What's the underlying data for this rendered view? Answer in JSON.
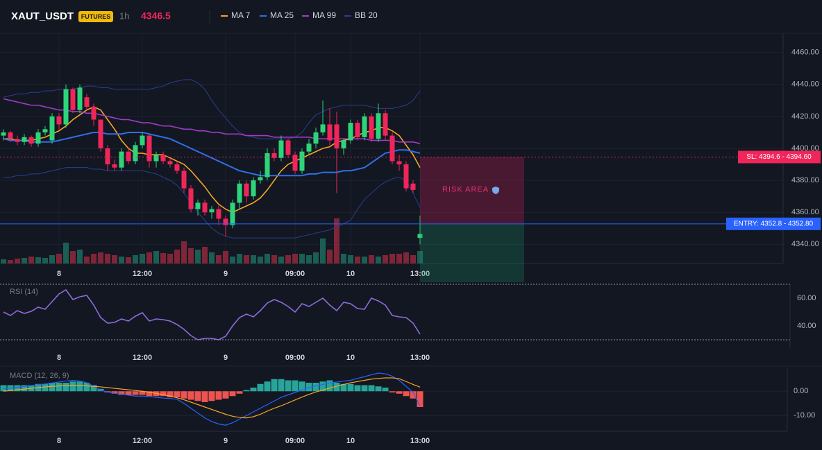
{
  "header": {
    "symbol": "XAUT_USDT",
    "badge": "FUTURES",
    "interval": "1h",
    "price": "4346.5"
  },
  "chart_data": [
    {
      "type": "candlestick",
      "categories": [
        null,
        null,
        null,
        null,
        null,
        null,
        null,
        null,
        "8",
        null,
        null,
        null,
        null,
        null,
        null,
        null,
        null,
        null,
        null,
        null,
        "12:00",
        null,
        null,
        null,
        null,
        null,
        null,
        null,
        null,
        null,
        null,
        null,
        "9",
        null,
        null,
        null,
        null,
        null,
        null,
        null,
        null,
        null,
        "09:00",
        null,
        null,
        null,
        null,
        null,
        null,
        null,
        "10",
        null,
        null,
        null,
        null,
        null,
        null,
        null,
        null,
        null,
        "13:00"
      ],
      "open": [
        4408,
        4410,
        4406,
        4404,
        4407,
        4403,
        4410,
        4405,
        4420,
        4415,
        4437,
        4424,
        4432,
        4426,
        4418,
        4400,
        4390,
        4388,
        4398,
        4392,
        4402,
        4408,
        4392,
        4396,
        4392,
        4390,
        4386,
        4375,
        4362,
        4366,
        4360,
        4362,
        4356,
        4352,
        4366,
        4378,
        4370,
        4380,
        4382,
        4397,
        4394,
        4405,
        4396,
        4386,
        4398,
        4403,
        4410,
        4415,
        4415,
        4400,
        4405,
        4416,
        4407,
        4420,
        4406,
        4422,
        4408,
        4392,
        4390,
        4378,
        4344
      ],
      "high": [
        4412,
        4411,
        4408,
        4409,
        4408,
        4412,
        4414,
        4422,
        4422,
        4440,
        4438,
        4440,
        4434,
        4428,
        4418,
        4402,
        4393,
        4400,
        4400,
        4404,
        4410,
        4409,
        4398,
        4398,
        4394,
        4392,
        4388,
        4377,
        4368,
        4368,
        4364,
        4364,
        4358,
        4368,
        4380,
        4380,
        4382,
        4386,
        4400,
        4400,
        4408,
        4406,
        4398,
        4400,
        4406,
        4413,
        4430,
        4425,
        4423,
        4406,
        4418,
        4418,
        4422,
        4422,
        4428,
        4424,
        4410,
        4396,
        4392,
        4380,
        4358
      ],
      "low": [
        4405,
        4404,
        4402,
        4402,
        4401,
        4401,
        4408,
        4403,
        4412,
        4413,
        4422,
        4422,
        4424,
        4414,
        4398,
        4386,
        4386,
        4386,
        4390,
        4390,
        4400,
        4388,
        4388,
        4390,
        4388,
        4384,
        4372,
        4360,
        4358,
        4358,
        4356,
        4352,
        4345,
        4350,
        4362,
        4366,
        4368,
        4378,
        4380,
        4392,
        4392,
        4394,
        4384,
        4384,
        4396,
        4400,
        4408,
        4402,
        4372,
        4396,
        4403,
        4405,
        4405,
        4404,
        4404,
        4405,
        4390,
        4386,
        4373,
        4372,
        4340
      ],
      "close": [
        4410,
        4406,
        4404,
        4407,
        4403,
        4410,
        4412,
        4420,
        4415,
        4437,
        4424,
        4438,
        4426,
        4418,
        4400,
        4390,
        4388,
        4398,
        4392,
        4402,
        4408,
        4392,
        4396,
        4392,
        4390,
        4386,
        4375,
        4362,
        4366,
        4360,
        4362,
        4356,
        4352,
        4366,
        4378,
        4370,
        4380,
        4382,
        4397,
        4394,
        4405,
        4396,
        4386,
        4398,
        4403,
        4410,
        4415,
        4405,
        4400,
        4405,
        4416,
        4407,
        4420,
        4406,
        4422,
        4408,
        4392,
        4390,
        4375,
        4374,
        4346.5
      ],
      "volume": [
        6,
        5,
        7,
        8,
        10,
        9,
        8,
        12,
        14,
        30,
        18,
        20,
        10,
        14,
        16,
        14,
        12,
        10,
        9,
        12,
        14,
        16,
        18,
        15,
        14,
        20,
        32,
        22,
        20,
        24,
        16,
        12,
        18,
        10,
        14,
        12,
        12,
        10,
        14,
        12,
        10,
        12,
        14,
        14,
        12,
        16,
        36,
        20,
        65,
        14,
        12,
        10,
        10,
        12,
        10,
        12,
        14,
        14,
        16,
        12,
        18
      ],
      "up_color": "#2ed47a",
      "down_color": "#f0265a",
      "volume_up_color": "#1b5e54",
      "volume_down_color": "#7e2638",
      "series": [
        {
          "name": "MA 7",
          "color": "#f5a623",
          "values": [
            4406,
            4406,
            4405,
            4405,
            4405,
            4406,
            4407,
            4409,
            4411,
            4414,
            4418,
            4421,
            4424,
            4426,
            4424,
            4418,
            4412,
            4405,
            4400,
            4397,
            4397,
            4396,
            4396,
            4396,
            4394,
            4392,
            4390,
            4386,
            4381,
            4376,
            4370,
            4365,
            4362,
            4360,
            4362,
            4364,
            4366,
            4369,
            4374,
            4380,
            4386,
            4390,
            4392,
            4394,
            4396,
            4398,
            4400,
            4401,
            4404,
            4405,
            4406,
            4408,
            4410,
            4411,
            4413,
            4413,
            4411,
            4408,
            4402,
            4396,
            4388
          ]
        },
        {
          "name": "MA 25",
          "color": "#2f6fe8",
          "values": [
            4406,
            4405,
            4405,
            4405,
            4404,
            4404,
            4404,
            4404,
            4405,
            4406,
            4407,
            4408,
            4409,
            4410,
            4410,
            4409,
            4409,
            4409,
            4410,
            4410,
            4410,
            4409,
            4408,
            4407,
            4406,
            4404,
            4402,
            4400,
            4398,
            4396,
            4394,
            4392,
            4390,
            4388,
            4386,
            4385,
            4384,
            4383,
            4383,
            4383,
            4383,
            4383,
            4383,
            4383,
            4384,
            4384,
            4385,
            4385,
            4385,
            4386,
            4386,
            4387,
            4388,
            4391,
            4394,
            4397,
            4398,
            4399,
            4399,
            4398,
            4397
          ]
        },
        {
          "name": "MA 99",
          "color": "#a03cc8",
          "values": [
            4431,
            4430,
            4429,
            4428,
            4427,
            4427,
            4426,
            4425,
            4424,
            4424,
            4423,
            4423,
            4422,
            4422,
            4421,
            4420,
            4419,
            4418,
            4418,
            4417,
            4416,
            4416,
            4415,
            4414,
            4414,
            4413,
            4412,
            4412,
            4411,
            4411,
            4410,
            4410,
            4409,
            4409,
            4409,
            4408,
            4408,
            4408,
            4408,
            4407,
            4407,
            4407,
            4407,
            4407,
            4407,
            4406,
            4406,
            4406,
            4406,
            4406,
            4406,
            4406,
            4406,
            4405,
            4405,
            4405,
            4405,
            4404,
            4404,
            4404,
            4403
          ]
        }
      ],
      "bb": {
        "name": "BB 20",
        "color": "#2a3f8f",
        "upper": [
          4432,
          4433,
          4434,
          4434,
          4435,
          4435,
          4436,
          4436,
          4437,
          4437,
          4437,
          4438,
          4439,
          4439,
          4438,
          4438,
          4437,
          4437,
          4437,
          4437,
          4437,
          4437,
          4438,
          4439,
          4441,
          4442,
          4443,
          4443,
          4441,
          4437,
          4430,
          4424,
          4419,
          4414,
          4410,
          4408,
          4407,
          4406,
          4406,
          4406,
          4406,
          4406,
          4407,
          4410,
          4416,
          4421,
          4423,
          4425,
          4426,
          4427,
          4427,
          4427,
          4427,
          4426,
          4425,
          4425,
          4425,
          4426,
          4427,
          4430,
          4436
        ],
        "lower": [
          4382,
          4382,
          4383,
          4383,
          4384,
          4384,
          4385,
          4386,
          4387,
          4388,
          4388,
          4388,
          4388,
          4387,
          4387,
          4386,
          4386,
          4386,
          4386,
          4386,
          4386,
          4385,
          4384,
          4382,
          4380,
          4377,
          4372,
          4366,
          4360,
          4355,
          4350,
          4347,
          4345,
          4344,
          4344,
          4344,
          4344,
          4344,
          4344,
          4344,
          4344,
          4344,
          4344,
          4345,
          4346,
          4347,
          4348,
          4349,
          4351,
          4353,
          4355,
          4362,
          4368,
          4372,
          4376,
          4379,
          4381,
          4382,
          4380,
          4372,
          4363
        ]
      },
      "ylim": [
        4328,
        4472
      ],
      "yticks": [
        {
          "value": 4340,
          "label": "4340.00"
        },
        {
          "value": 4360,
          "label": "4360.00"
        },
        {
          "value": 4380,
          "label": "4380.00"
        },
        {
          "value": 4400,
          "label": "4400.00"
        },
        {
          "value": 4420,
          "label": "4420.00"
        },
        {
          "value": 4440,
          "label": "4440.00"
        },
        {
          "value": 4460,
          "label": "4460.00"
        }
      ],
      "grid": true,
      "sl": {
        "value": 4394.6,
        "label": "SL: 4394.6 - 4394.60",
        "color": "#f0265a"
      },
      "entry": {
        "value": 4352.8,
        "label": "ENTRY: 4352.8 - 4352.80",
        "color": "#2962ff"
      },
      "risk_label": "RISK AREA"
    },
    {
      "type": "line",
      "title": "RSI (14)",
      "color": "#8e6cdb",
      "categories": [
        null,
        null,
        null,
        null,
        null,
        null,
        null,
        null,
        "8",
        null,
        null,
        null,
        null,
        null,
        null,
        null,
        null,
        null,
        null,
        null,
        "12:00",
        null,
        null,
        null,
        null,
        null,
        null,
        null,
        null,
        null,
        null,
        null,
        "9",
        null,
        null,
        null,
        null,
        null,
        null,
        null,
        null,
        null,
        "09:00",
        null,
        null,
        null,
        null,
        null,
        null,
        null,
        "10",
        null,
        null,
        null,
        null,
        null,
        null,
        null,
        null,
        null,
        "13:00"
      ],
      "values": [
        50,
        47.5,
        51,
        49,
        50.5,
        53.5,
        52,
        57.5,
        63,
        66,
        59,
        61,
        62,
        55,
        46,
        42,
        42.5,
        45,
        43.5,
        47,
        49.5,
        43.5,
        45,
        44.5,
        43.5,
        41,
        37.5,
        33,
        30,
        31,
        31,
        30,
        32.5,
        40,
        46,
        48.5,
        46.5,
        51,
        56.5,
        59,
        57,
        54,
        50,
        56,
        54,
        57,
        60,
        55,
        51,
        57,
        56,
        52.5,
        52,
        60,
        58,
        55,
        47.5,
        46.5,
        46,
        42,
        34
      ],
      "ylim": [
        25,
        70
      ],
      "yticks": [
        {
          "value": 40,
          "label": "40.00"
        },
        {
          "value": 60,
          "label": "60.00"
        }
      ],
      "levels": [
        70,
        30
      ]
    },
    {
      "type": "macd",
      "title": "MACD (12, 26, 9)",
      "categories": [
        null,
        null,
        null,
        null,
        null,
        null,
        null,
        null,
        "8",
        null,
        null,
        null,
        null,
        null,
        null,
        null,
        null,
        null,
        null,
        null,
        "12:00",
        null,
        null,
        null,
        null,
        null,
        null,
        null,
        null,
        null,
        null,
        null,
        "9",
        null,
        null,
        null,
        null,
        null,
        null,
        null,
        null,
        null,
        "09:00",
        null,
        null,
        null,
        null,
        null,
        null,
        null,
        "10",
        null,
        null,
        null,
        null,
        null,
        null,
        null,
        null,
        null,
        "13:00"
      ],
      "histogram": [
        2.5,
        2.5,
        2.5,
        2.5,
        2.5,
        3,
        3,
        3.5,
        3.5,
        3.5,
        4,
        4,
        3.5,
        2.5,
        1,
        -0.5,
        -1,
        -1.5,
        -1.5,
        -1.5,
        -1.5,
        -2,
        -2,
        -2,
        -2.5,
        -2.5,
        -3,
        -3.5,
        -4,
        -4.5,
        -4,
        -3.5,
        -3,
        -2,
        -1,
        0.5,
        1.5,
        3,
        4,
        5,
        5,
        4.5,
        4.5,
        4,
        3.5,
        3.5,
        4,
        4.5,
        3.5,
        3,
        3,
        2.5,
        2.5,
        2.5,
        2,
        1.5,
        -0.5,
        -1,
        -2,
        -3,
        -6.5
      ],
      "up_color": "#26a69a",
      "down_color": "#ef5350",
      "series": [
        {
          "color": "#2962ff",
          "values": [
            1,
            1.3,
            1.6,
            2,
            2.3,
            2.7,
            3,
            3.4,
            3.8,
            4.2,
            4.5,
            4.2,
            3.5,
            2,
            0.5,
            -0.3,
            -0.8,
            -1.2,
            -1.6,
            -2,
            -2,
            -2.2,
            -2.5,
            -2.8,
            -3,
            -3.3,
            -5,
            -7,
            -9,
            -11,
            -12.5,
            -13.5,
            -14,
            -13,
            -11.5,
            -10,
            -8.5,
            -7,
            -5.5,
            -4,
            -2.5,
            -1.5,
            -0.5,
            0.5,
            1.5,
            2.2,
            2.8,
            3.4,
            3.8,
            4.2,
            4.5,
            5.3,
            6,
            6.8,
            7.5,
            7.2,
            6.2,
            4.5,
            2,
            -0.5,
            -6
          ]
        },
        {
          "color": "#f5a623",
          "values": [
            0,
            0.3,
            0.6,
            0.9,
            1.2,
            1.5,
            1.8,
            2,
            2.2,
            2.4,
            2.5,
            2.4,
            2.2,
            2,
            1.8,
            1.5,
            1.2,
            0.9,
            0.6,
            0.3,
            0,
            -0.4,
            -0.9,
            -1.4,
            -2,
            -2.7,
            -3.5,
            -4.5,
            -5.5,
            -6.5,
            -7.5,
            -8.5,
            -9.5,
            -10.3,
            -10.8,
            -11,
            -10.5,
            -9.5,
            -8.2,
            -7,
            -6,
            -4.8,
            -3.6,
            -2.4,
            -1.3,
            -0.3,
            0.5,
            1.3,
            2.1,
            2.8,
            3.5,
            4,
            4.5,
            5,
            5.3,
            5.5,
            5.5,
            5.2,
            4,
            2.8,
            1.7
          ]
        }
      ],
      "ylim": [
        -16.5,
        9.5
      ],
      "yticks": [
        {
          "value": -10,
          "label": "-10.00"
        },
        {
          "value": 0,
          "label": "0.00"
        }
      ],
      "grid": true
    }
  ]
}
